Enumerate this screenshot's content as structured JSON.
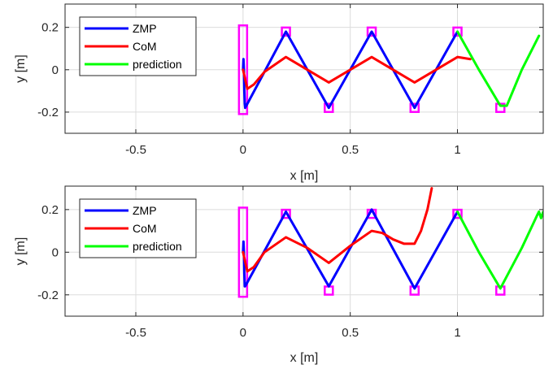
{
  "chart_data": [
    {
      "type": "line",
      "xlabel": "x [m]",
      "ylabel": "y [m]",
      "xlim": [
        -0.83,
        1.4
      ],
      "ylim": [
        -0.3,
        0.31
      ],
      "xticks": [
        -0.5,
        0,
        0.5,
        1
      ],
      "xtick_labels": [
        "-0.5",
        "0",
        "0.5",
        "1"
      ],
      "yticks": [
        0.2,
        0,
        -0.2
      ],
      "ytick_labels": [
        "0.2",
        "0",
        "-0.2"
      ],
      "grid": true,
      "legend_position": "top-left",
      "series": [
        {
          "name": "ZMP",
          "color": "#0000ff",
          "x": [
            0,
            0.002,
            0.004,
            0.006,
            0.008,
            0.01,
            0.2,
            0.4,
            0.6,
            0.8,
            1.0
          ],
          "y": [
            0,
            0.05,
            0.0,
            -0.1,
            -0.16,
            -0.18,
            0.18,
            -0.18,
            0.18,
            -0.18,
            0.18
          ]
        },
        {
          "name": "CoM",
          "color": "#ff0000",
          "x": [
            0.0,
            0.02,
            0.05,
            0.1,
            0.2,
            0.3,
            0.4,
            0.5,
            0.6,
            0.7,
            0.8,
            0.9,
            1.0,
            1.06
          ],
          "y": [
            0.0,
            -0.09,
            -0.07,
            -0.01,
            0.06,
            0.0,
            -0.06,
            0.0,
            0.06,
            0.0,
            -0.06,
            0.0,
            0.06,
            0.05
          ]
        },
        {
          "name": "prediction",
          "color": "#00ff00",
          "x": [
            1.0,
            1.1,
            1.2,
            1.23,
            1.3,
            1.38
          ],
          "y": [
            0.18,
            0.0,
            -0.17,
            -0.17,
            0.0,
            0.16
          ]
        }
      ],
      "footprints": {
        "color": "#ff00ff",
        "points": [
          [
            0,
            0.19
          ],
          [
            0,
            -0.19
          ],
          [
            0.2,
            0.18
          ],
          [
            0.4,
            -0.18
          ],
          [
            0.6,
            0.18
          ],
          [
            0.8,
            -0.18
          ],
          [
            1.0,
            0.18
          ],
          [
            1.2,
            -0.18
          ]
        ]
      }
    },
    {
      "type": "line",
      "xlabel": "x [m]",
      "ylabel": "y [m]",
      "xlim": [
        -0.83,
        1.4
      ],
      "ylim": [
        -0.3,
        0.31
      ],
      "xticks": [
        -0.5,
        0,
        0.5,
        1
      ],
      "xtick_labels": [
        "-0.5",
        "0",
        "0.5",
        "1"
      ],
      "yticks": [
        0.2,
        0,
        -0.2
      ],
      "ytick_labels": [
        "0.2",
        "0",
        "-0.2"
      ],
      "grid": true,
      "legend_position": "top-left",
      "series": [
        {
          "name": "ZMP",
          "color": "#0000ff",
          "x": [
            0,
            0.002,
            0.004,
            0.006,
            0.008,
            0.01,
            0.2,
            0.4,
            0.6,
            0.8,
            1.0
          ],
          "y": [
            0,
            0.05,
            0.0,
            -0.1,
            -0.16,
            -0.16,
            0.19,
            -0.16,
            0.2,
            -0.17,
            0.19
          ]
        },
        {
          "name": "CoM",
          "color": "#ff0000",
          "x": [
            0.0,
            0.02,
            0.05,
            0.1,
            0.2,
            0.3,
            0.4,
            0.5,
            0.6,
            0.65,
            0.7,
            0.75,
            0.8,
            0.83,
            0.86,
            0.88
          ],
          "y": [
            0.0,
            -0.09,
            -0.07,
            0.0,
            0.07,
            0.02,
            -0.05,
            0.03,
            0.1,
            0.09,
            0.06,
            0.04,
            0.04,
            0.1,
            0.2,
            0.3
          ]
        },
        {
          "name": "prediction",
          "color": "#00ff00",
          "x": [
            1.0,
            1.1,
            1.2,
            1.3,
            1.37,
            1.38,
            1.39,
            1.4
          ],
          "y": [
            0.19,
            0.0,
            -0.17,
            0.02,
            0.17,
            0.19,
            0.16,
            0.19
          ]
        }
      ],
      "footprints": {
        "color": "#ff00ff",
        "points": [
          [
            0,
            0.19
          ],
          [
            0,
            -0.19
          ],
          [
            0.2,
            0.18
          ],
          [
            0.4,
            -0.18
          ],
          [
            0.6,
            0.18
          ],
          [
            0.8,
            -0.18
          ],
          [
            1.0,
            0.18
          ],
          [
            1.2,
            -0.18
          ]
        ]
      }
    }
  ]
}
